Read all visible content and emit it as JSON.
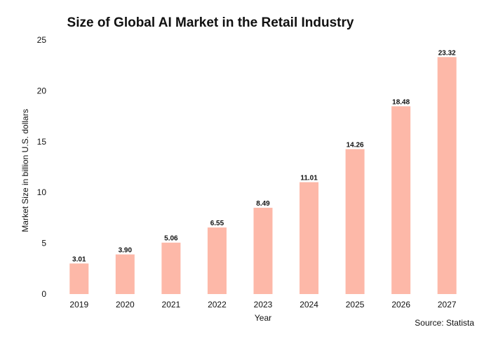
{
  "source": "Source: Statista",
  "chart_data": {
    "type": "bar",
    "title": "Size of Global AI Market in the Retail Industry",
    "xlabel": "Year",
    "ylabel": "Market Size in billion U.S. dollars",
    "categories": [
      "2019",
      "2020",
      "2021",
      "2022",
      "2023",
      "2024",
      "2025",
      "2026",
      "2027"
    ],
    "values": [
      3.01,
      3.9,
      5.06,
      6.55,
      8.49,
      11.01,
      14.26,
      18.48,
      23.32
    ],
    "value_labels": [
      "3.01",
      "3.90",
      "5.06",
      "6.55",
      "8.49",
      "11.01",
      "14.26",
      "18.48",
      "23.32"
    ],
    "ylim": [
      0,
      25
    ],
    "yticks": [
      "0",
      "5",
      "10",
      "15",
      "20",
      "25"
    ],
    "grid": false,
    "legend": "none",
    "bar_color": "#fdb8a8"
  }
}
